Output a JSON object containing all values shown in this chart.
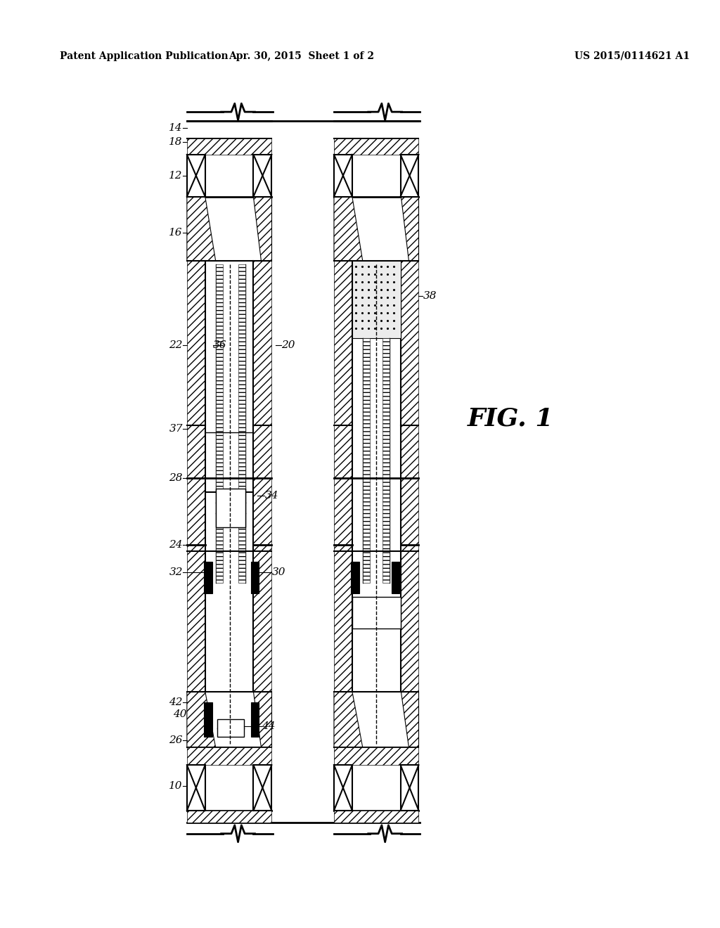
{
  "title_left": "Patent Application Publication",
  "title_center": "Apr. 30, 2015  Sheet 1 of 2",
  "title_right": "US 2015/0114621 A1",
  "fig_label": "FIG. 1",
  "background_color": "#ffffff",
  "line_color": "#000000",
  "figsize": [
    10.24,
    13.2
  ],
  "dpi": 100,
  "labels_left": [
    "14",
    "18",
    "12",
    "16",
    "20",
    "22",
    "36",
    "37",
    "28",
    "34",
    "24",
    "30",
    "32",
    "26",
    "40",
    "42",
    "44",
    "10"
  ],
  "labels_right": [
    "38"
  ]
}
